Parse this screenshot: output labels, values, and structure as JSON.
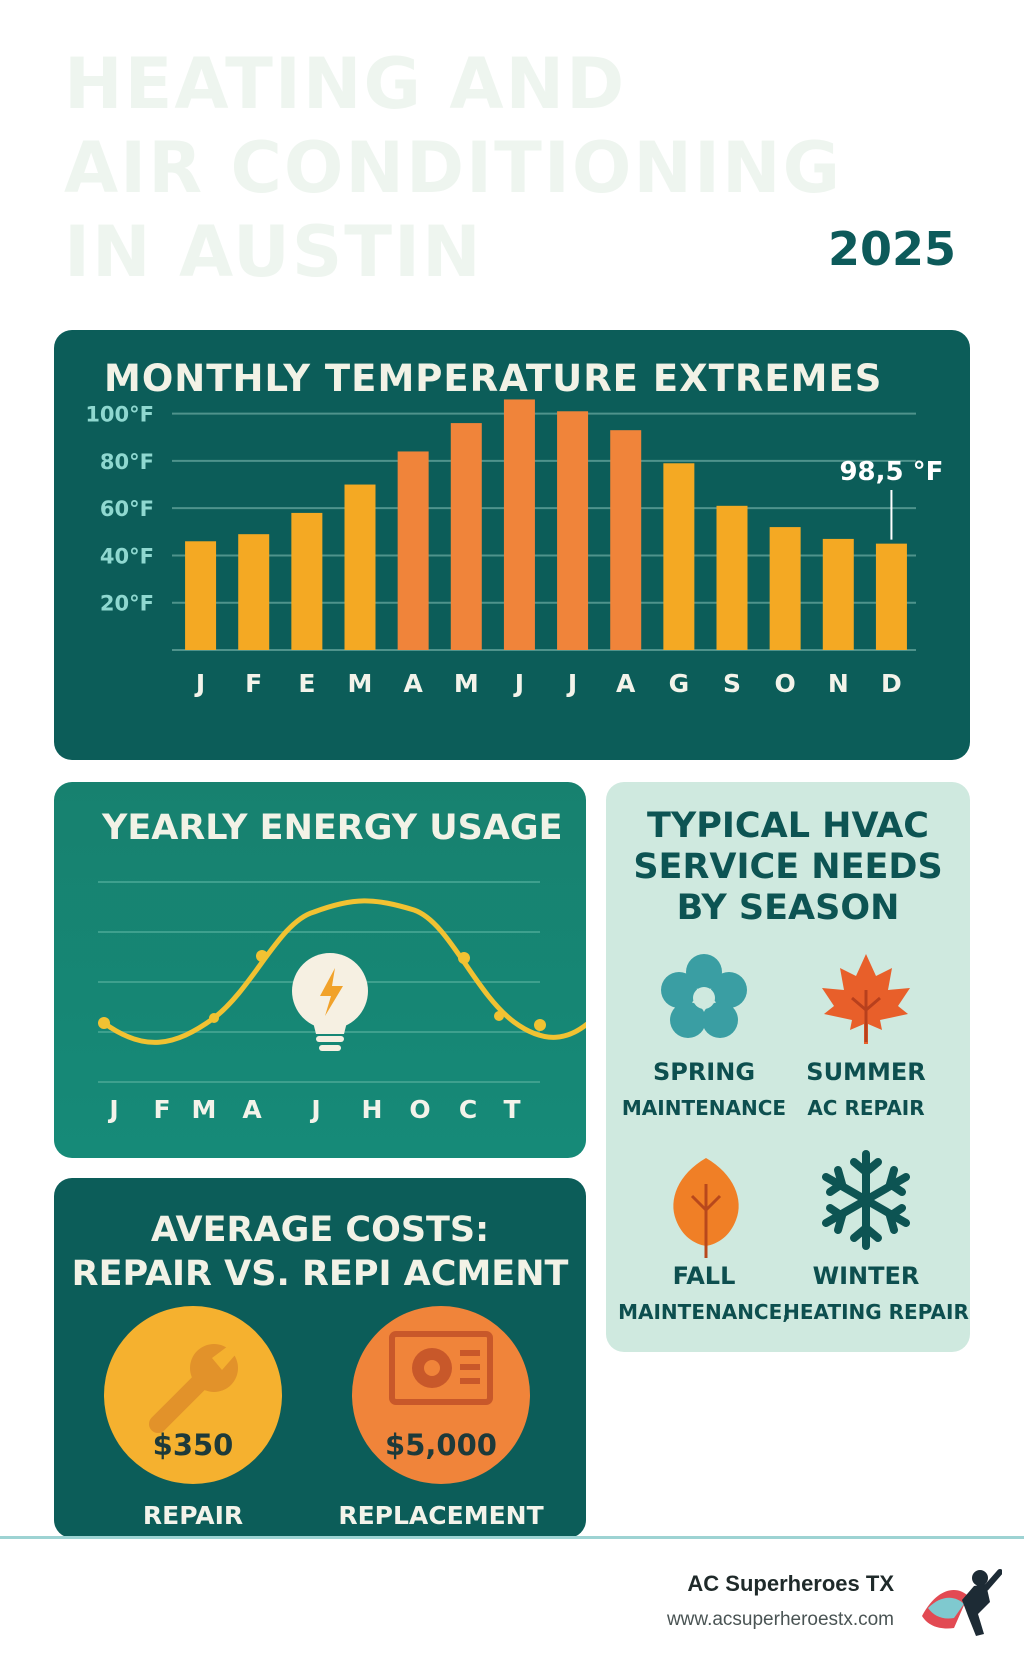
{
  "header": {
    "title_lines": [
      "HEATING AND",
      "AIR CONDITIONING",
      "IN AUSTIN"
    ],
    "year": "2025"
  },
  "temperature": {
    "title": "MONTHLY TEMPERATURE EXTREMES",
    "callout": "98,5 °F",
    "colors": {
      "warm": "#f4a923",
      "hot": "#f0843a",
      "background": "#0c5d59",
      "grid": "#4f938c"
    }
  },
  "chart_data": {
    "type": "bar",
    "title": "MONTHLY TEMPERATURE EXTREMES",
    "categories": [
      "J",
      "F",
      "E",
      "M",
      "A",
      "M",
      "J",
      "J",
      "A",
      "G",
      "S",
      "O",
      "N",
      "D"
    ],
    "values": [
      46,
      49,
      58,
      70,
      84,
      96,
      106,
      101,
      93,
      79,
      61,
      52,
      47,
      45
    ],
    "y_ticks": [
      "100°F",
      "80°F",
      "60°F",
      "40°F",
      "20°F"
    ],
    "ylim": [
      0,
      110
    ],
    "grid": true,
    "annotation": "98,5 °F"
  },
  "energy": {
    "title": "YEARLY ENERGY USAGE",
    "months": [
      "J",
      "F",
      "M",
      "A",
      "J",
      "H",
      "O",
      "C",
      "T"
    ],
    "icon": "lightbulb-icon"
  },
  "costs": {
    "title_line1": "AVERAGE COSTS:",
    "title_line2": "REPAIR VS. REPI ACMENT",
    "repair": {
      "value": "$350",
      "label": "REPAIR",
      "icon": "wrench-icon",
      "color": "#f5b12f"
    },
    "replacement": {
      "value": "$5,000",
      "label": "REPLACEMENT",
      "icon": "ac-unit-icon",
      "color": "#f0843a"
    }
  },
  "seasons": {
    "title_lines": [
      "TYPICAL HVAC",
      "SERVICE NEEDS",
      "BY SEASON"
    ],
    "spring": {
      "name": "SPRING",
      "need": "MAINTENANCE",
      "icon": "flower-icon"
    },
    "summer": {
      "name": "SUMMER",
      "need": "AC REPAIR",
      "icon": "maple-leaf-icon"
    },
    "fall": {
      "name": "FALL",
      "need": "MAINTENANCE,",
      "icon": "leaf-icon"
    },
    "winter": {
      "name": "WINTER",
      "need": "HEATING REPAIR",
      "icon": "snowflake-icon"
    }
  },
  "footer": {
    "brand": "AC Superheroes TX",
    "url": "www.acsuperheroestx.com",
    "logo_icon": "superhero-icon"
  }
}
